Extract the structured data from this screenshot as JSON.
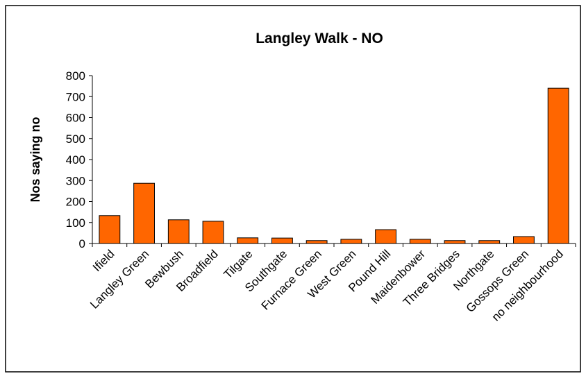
{
  "chart_data": {
    "type": "bar",
    "title": "Langley Walk - NO",
    "ylabel": "Nos saying no",
    "categories": [
      "Ifield",
      "Langley Green",
      "Bewbush",
      "Broadfield",
      "Tilgate",
      "Southgate",
      "Furnace Green",
      "West Green",
      "Pound Hill",
      "Maidenbower",
      "Three Bridges",
      "Northgate",
      "Gossops Green",
      "no neighbourhood"
    ],
    "values": [
      133,
      287,
      113,
      106,
      27,
      26,
      14,
      20,
      66,
      20,
      14,
      14,
      33,
      740
    ],
    "color": "#ff6600",
    "ylim": [
      0,
      800
    ],
    "yticks": [
      0,
      100,
      200,
      300,
      400,
      500,
      600,
      700,
      800
    ],
    "grid": false
  }
}
